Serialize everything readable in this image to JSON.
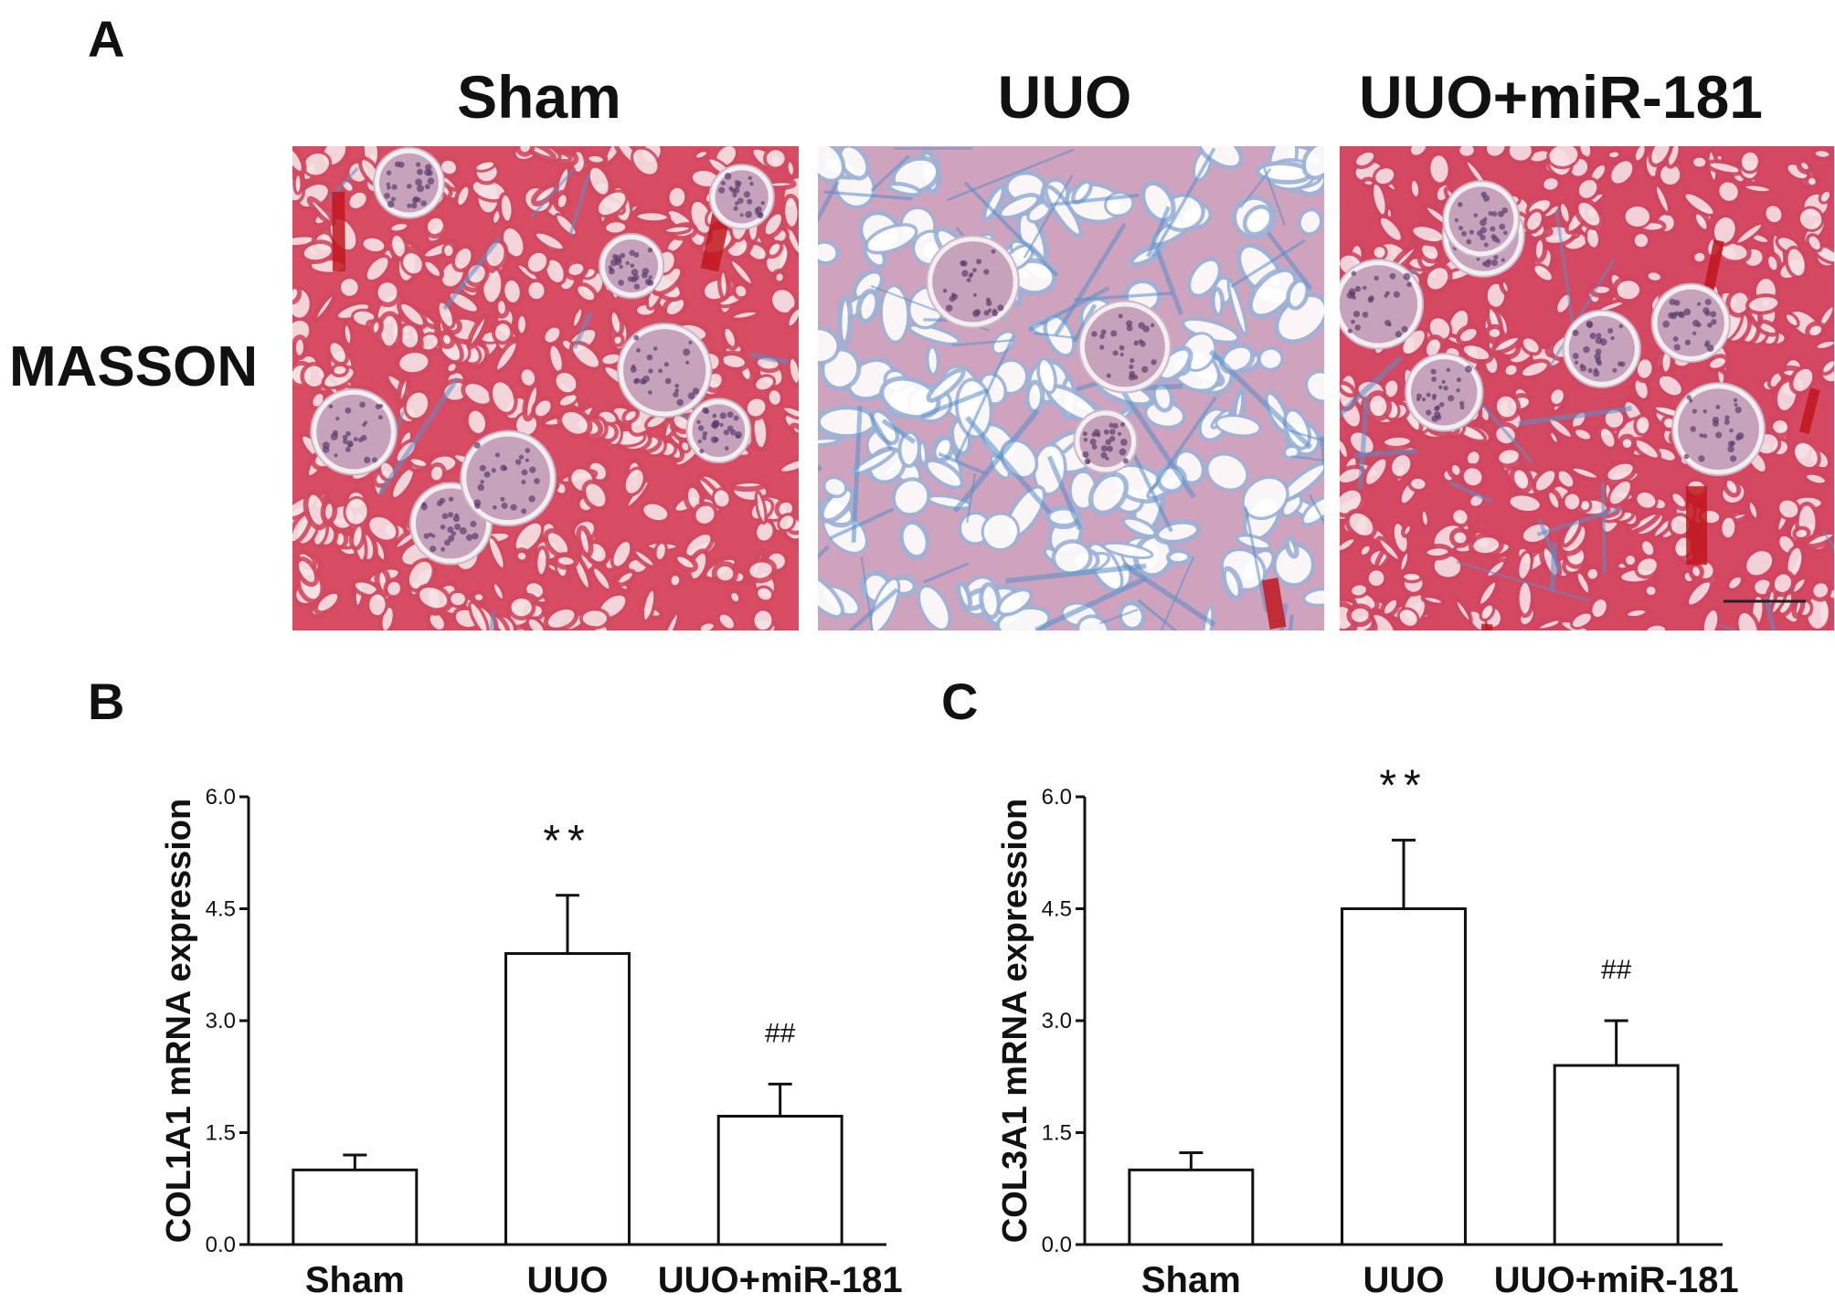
{
  "figure": {
    "panel_a": {
      "letter": "A",
      "row_label": "MASSON",
      "columns": [
        "Sham",
        "UUO",
        "UUO+miR-181"
      ]
    },
    "panel_b": {
      "letter": "B"
    },
    "panel_c": {
      "letter": "C"
    }
  },
  "chart_data": [
    {
      "type": "bar",
      "panel": "B",
      "ylabel": "COL1A1 mRNA expression",
      "xlabel": "",
      "categories": [
        "Sham",
        "UUO",
        "UUO+miR-181"
      ],
      "values": [
        1.0,
        3.9,
        1.72
      ],
      "errors": [
        0.2,
        0.78,
        0.43
      ],
      "annotations": [
        "",
        "**",
        "##"
      ],
      "ylim": [
        0,
        6.0
      ],
      "yticks": [
        "0.0",
        "1.5",
        "3.0",
        "4.5",
        "6.0"
      ],
      "grid": false
    },
    {
      "type": "bar",
      "panel": "C",
      "ylabel": "COL3A1 mRNA expression",
      "xlabel": "",
      "categories": [
        "Sham",
        "UUO",
        "UUO+miR-181"
      ],
      "values": [
        1.0,
        4.5,
        2.4
      ],
      "errors": [
        0.23,
        0.92,
        0.6
      ],
      "annotations": [
        "",
        "**",
        "##"
      ],
      "ylim": [
        0,
        6.0
      ],
      "yticks": [
        "0.0",
        "1.5",
        "3.0",
        "4.5",
        "6.0"
      ],
      "grid": false
    }
  ]
}
